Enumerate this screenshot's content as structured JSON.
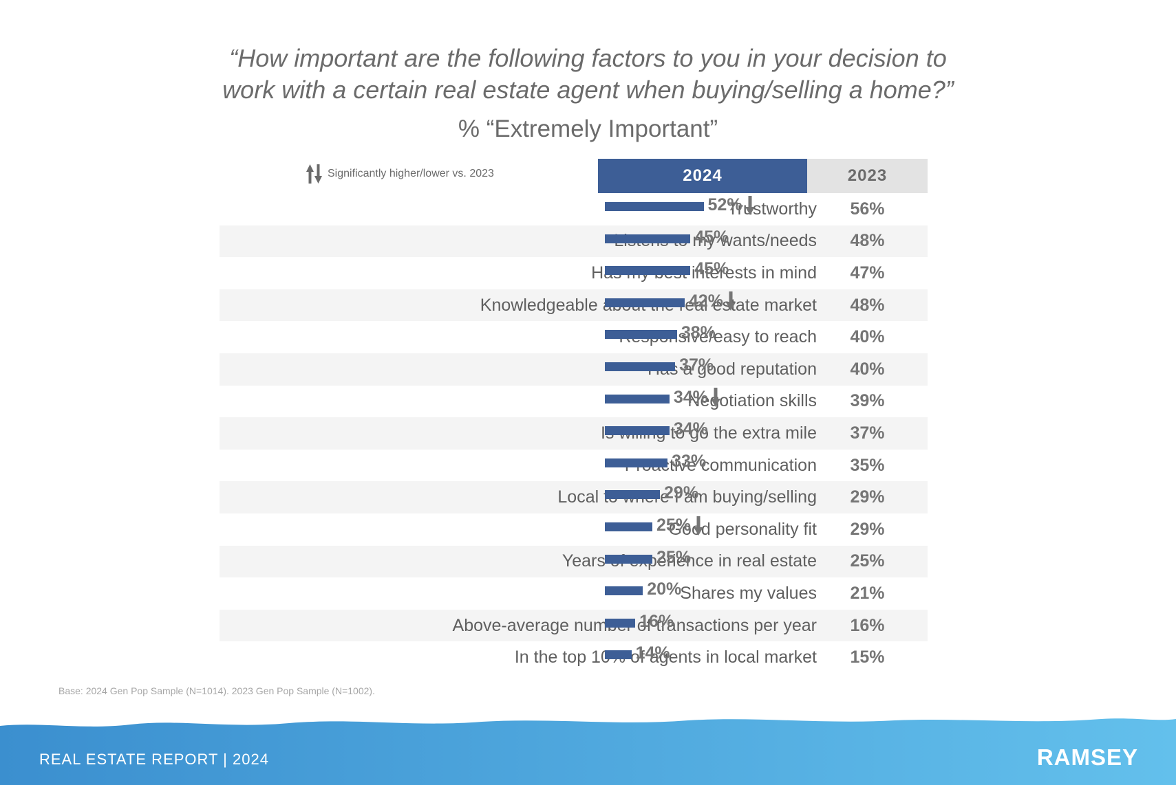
{
  "header": {
    "title_line1": "“How important are the following factors to you in your decision to",
    "title_line2": "work with a certain real estate agent when buying/selling a home?”",
    "subtitle": "% “Extremely Important”"
  },
  "legend": {
    "note": "Significantly higher/lower vs. 2023",
    "icons": [
      "arrow-up-icon",
      "arrow-down-icon"
    ]
  },
  "columns": {
    "current": "2024",
    "previous": "2023"
  },
  "colors": {
    "bar": "#3d5e96",
    "header_2024_bg": "#3d5e96",
    "header_2023_bg": "#e3e3e3",
    "arrow": "#757575",
    "footer_gradient_start": "#3b8fcf",
    "footer_gradient_end": "#63c0ec"
  },
  "chart_data": {
    "type": "bar",
    "orientation": "horizontal",
    "title": "“How important are the following factors to you in your decision to work with a certain real estate agent when buying/selling a home?”",
    "subtitle": "% “Extremely Important”",
    "categories": [
      "Trustworthy",
      "Listens to my wants/needs",
      "Has my best interests in mind",
      "Knowledgeable about the real estate market",
      "Responsive/easy to reach",
      "Has a good reputation",
      "Negotiation skills",
      "Is willing to go the extra mile",
      "Proactive communication",
      "Local to where I am buying/selling",
      "Good personality fit",
      "Years of experience in real estate",
      "Shares my values",
      "Above-average number of transactions per year",
      "In the top 10% of agents in local market"
    ],
    "series": [
      {
        "name": "2024",
        "values": [
          52,
          45,
          45,
          42,
          38,
          37,
          34,
          34,
          33,
          29,
          25,
          25,
          20,
          16,
          14
        ]
      },
      {
        "name": "2023",
        "values": [
          56,
          48,
          47,
          48,
          40,
          40,
          39,
          37,
          35,
          29,
          29,
          25,
          21,
          16,
          15
        ]
      }
    ],
    "labels_2024": [
      "52%",
      "45%",
      "45%",
      "42%",
      "38%",
      "37%",
      "34%",
      "34%",
      "33%",
      "29%",
      "25%",
      "25%",
      "20%",
      "16%",
      "14%"
    ],
    "labels_2023": [
      "56%",
      "48%",
      "47%",
      "48%",
      "40%",
      "40%",
      "39%",
      "37%",
      "35%",
      "29%",
      "29%",
      "25%",
      "21%",
      "16%",
      "15%"
    ],
    "significance": [
      "down",
      "",
      "",
      "down",
      "",
      "",
      "down",
      "",
      "",
      "",
      "down",
      "",
      "",
      "",
      ""
    ],
    "value_unit": "%",
    "legend": "top-left",
    "grid": false
  },
  "footnote": "Base: 2024 Gen Pop Sample (N=1014). 2023 Gen Pop Sample (N=1002).",
  "footer": {
    "report_label": "REAL ESTATE REPORT | 2024",
    "brand": "RAMSEY"
  }
}
